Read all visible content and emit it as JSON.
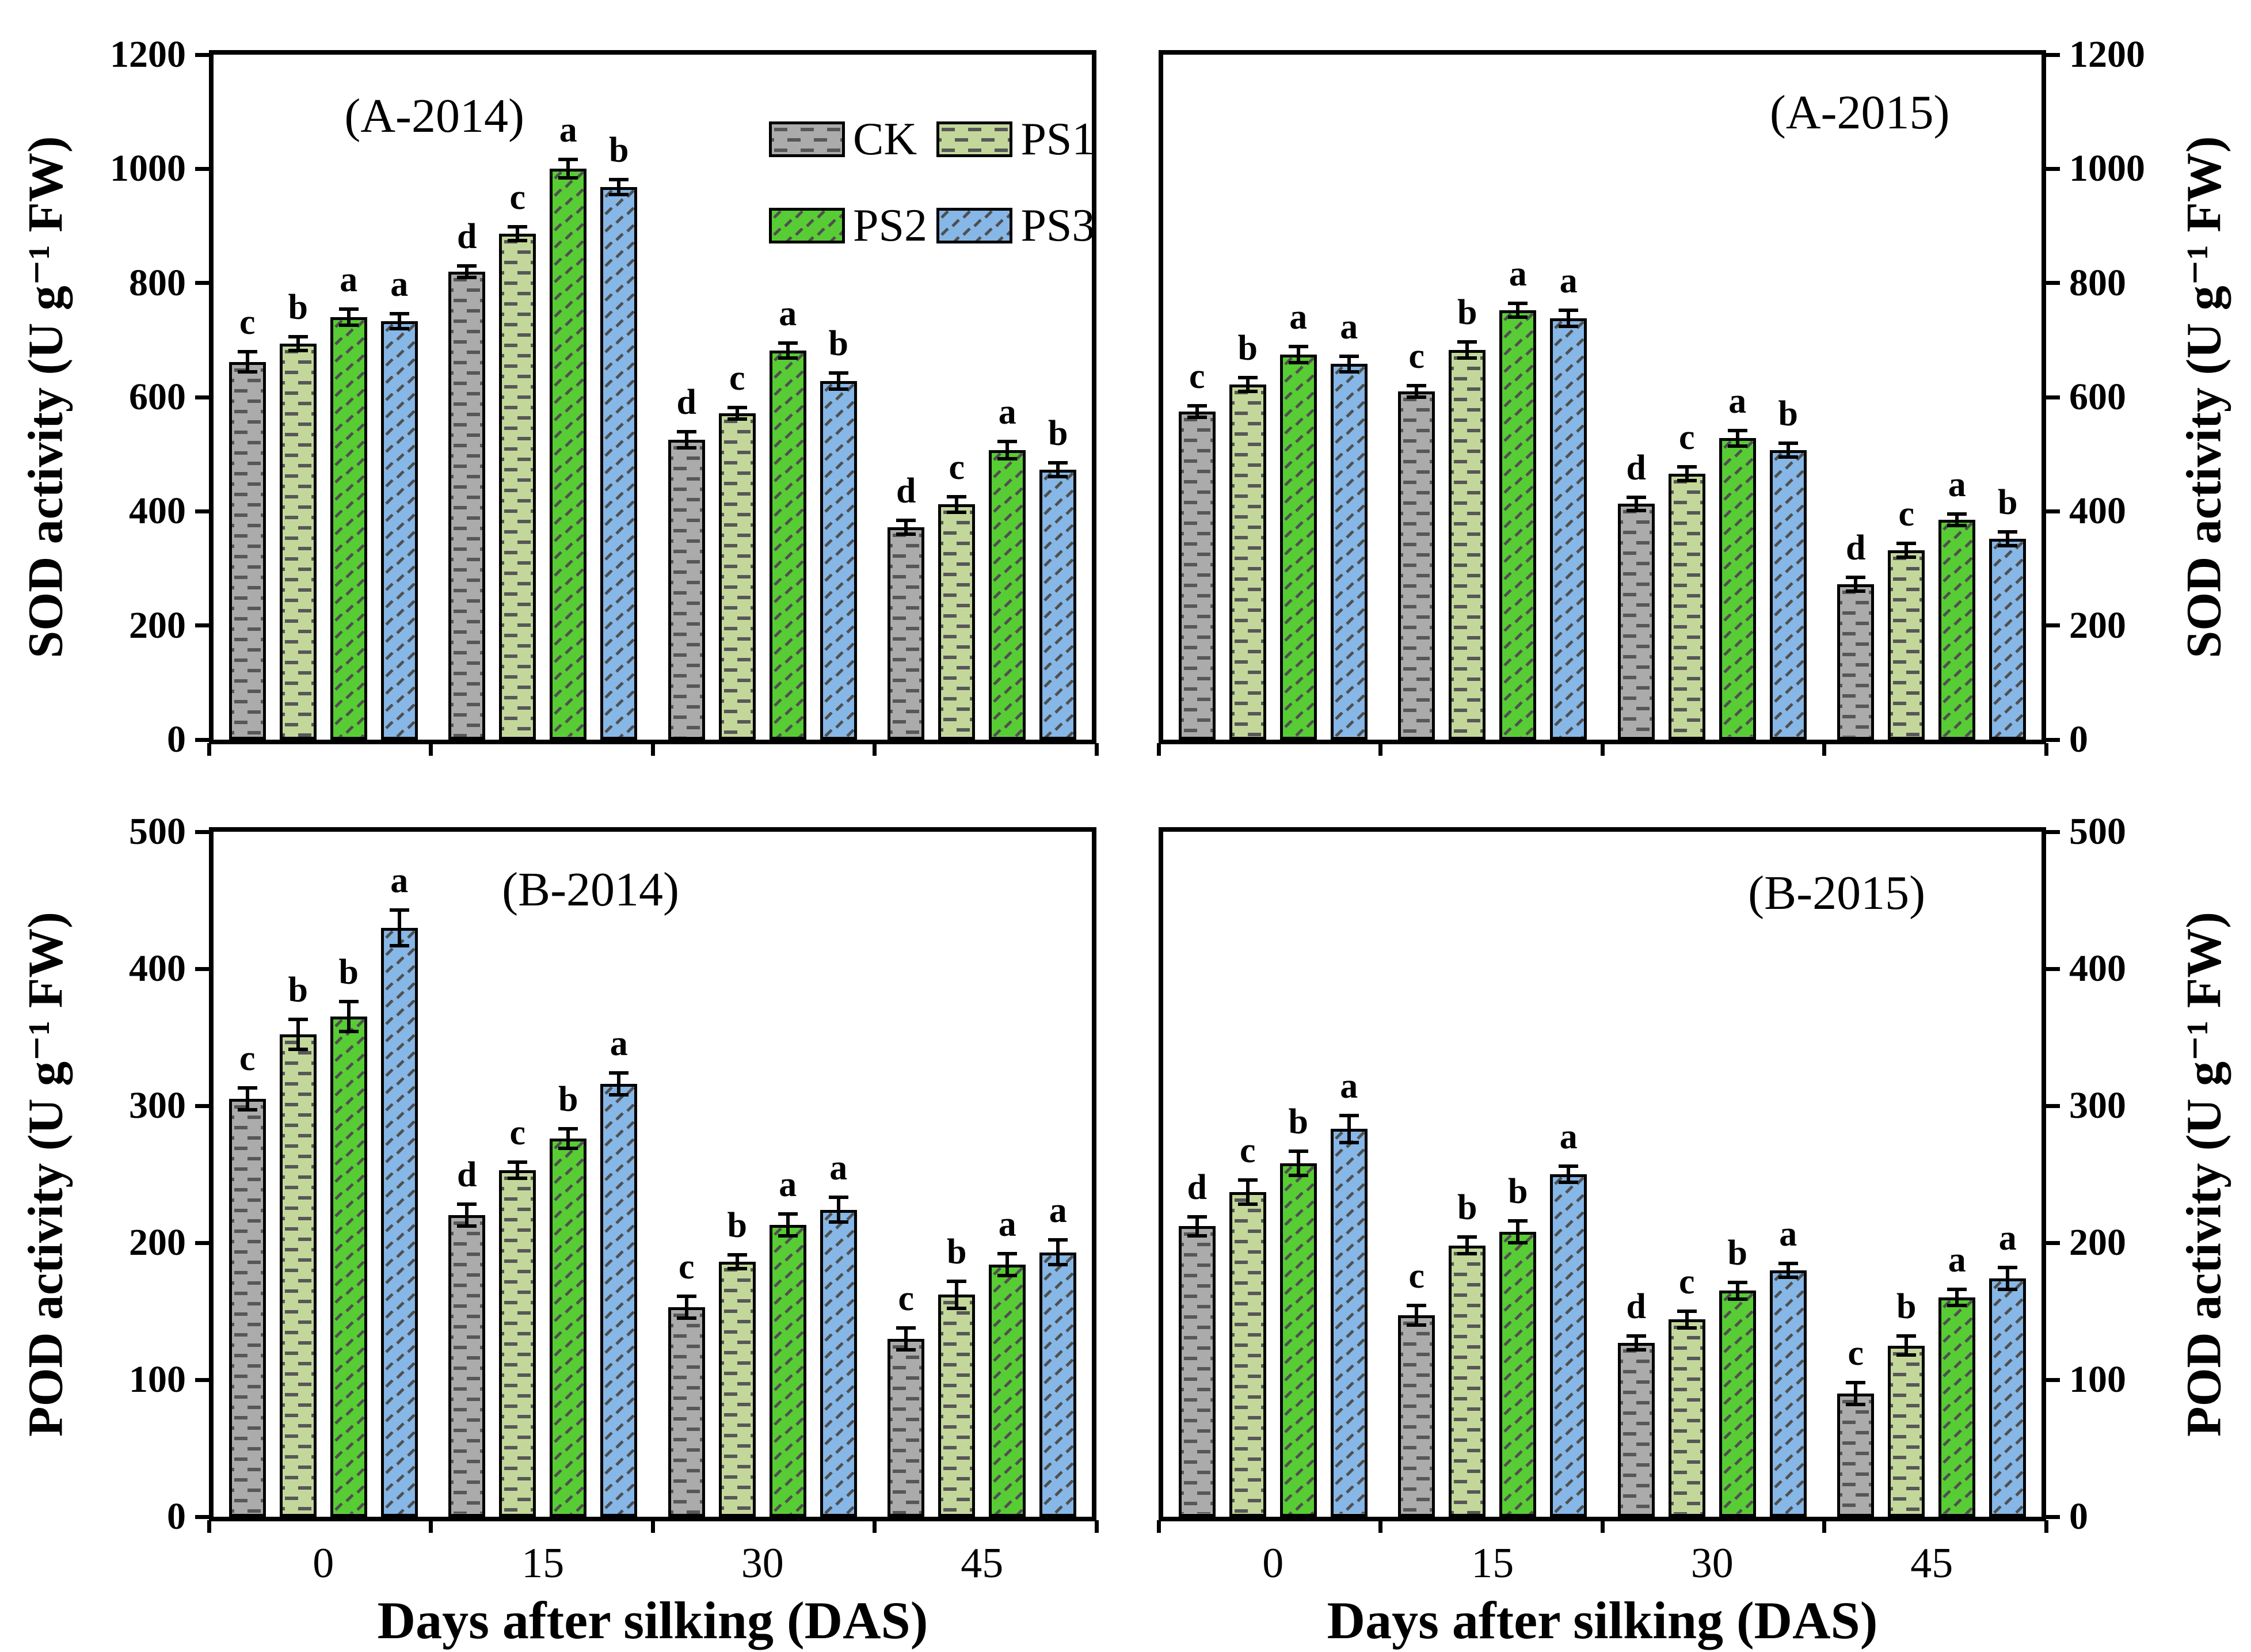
{
  "figure": {
    "x_axis_label": "Days after silking (DAS)",
    "x_tick_labels": [
      "0",
      "15",
      "30",
      "45"
    ],
    "legend": {
      "items": [
        {
          "key": "CK",
          "label": "CK"
        },
        {
          "key": "PS1",
          "label": "PS1"
        },
        {
          "key": "PS2",
          "label": "PS2"
        },
        {
          "key": "PS3",
          "label": "PS3"
        }
      ]
    },
    "colors": {
      "CK": {
        "fill": "#ababab",
        "hatch": "#575757",
        "hatch_type": "dash"
      },
      "PS1": {
        "fill": "#c4d79b",
        "hatch": "#575757",
        "hatch_type": "dash"
      },
      "PS2": {
        "fill": "#58cc34",
        "hatch": "#4f4f4f",
        "hatch_type": "diagonal"
      },
      "PS3": {
        "fill": "#86b7e6",
        "hatch": "#4f4f4f",
        "hatch_type": "diagonal"
      },
      "axis": "#000000"
    }
  },
  "chart_data": [
    {
      "type": "bar",
      "title": "(A-2014)",
      "ylabel": "SOD activity (U g⁻¹ FW)",
      "ylabel_side": "left",
      "ylim": [
        0,
        1200
      ],
      "yticks": [
        0,
        200,
        400,
        600,
        800,
        1000,
        1200
      ],
      "categories": [
        "0",
        "15",
        "30",
        "45"
      ],
      "series": [
        {
          "name": "CK",
          "values": [
            662,
            820,
            525,
            372
          ],
          "errors": [
            18,
            10,
            14,
            12
          ],
          "letters": [
            "c",
            "d",
            "d",
            "d"
          ]
        },
        {
          "name": "PS1",
          "values": [
            694,
            886,
            572,
            412
          ],
          "errors": [
            12,
            12,
            10,
            14
          ],
          "letters": [
            "b",
            "c",
            "c",
            "c"
          ]
        },
        {
          "name": "PS2",
          "values": [
            740,
            1000,
            682,
            507
          ],
          "errors": [
            14,
            16,
            13,
            15
          ],
          "letters": [
            "a",
            "a",
            "a",
            "a"
          ]
        },
        {
          "name": "PS3",
          "values": [
            733,
            968,
            628,
            473
          ],
          "errors": [
            13,
            13,
            14,
            12
          ],
          "letters": [
            "a",
            "b",
            "b",
            "b"
          ]
        }
      ]
    },
    {
      "type": "bar",
      "title": "(A-2015)",
      "ylabel": "SOD activity (U g⁻¹ FW)",
      "ylabel_side": "right",
      "ylim": [
        0,
        1200
      ],
      "yticks": [
        0,
        200,
        400,
        600,
        800,
        1000,
        1200
      ],
      "categories": [
        "0",
        "15",
        "30",
        "45"
      ],
      "series": [
        {
          "name": "CK",
          "values": [
            575,
            610,
            413,
            272
          ],
          "errors": [
            10,
            10,
            12,
            12
          ],
          "letters": [
            "c",
            "c",
            "d",
            "d"
          ]
        },
        {
          "name": "PS1",
          "values": [
            622,
            683,
            466,
            332
          ],
          "errors": [
            12,
            14,
            12,
            12
          ],
          "letters": [
            "b",
            "b",
            "c",
            "c"
          ]
        },
        {
          "name": "PS2",
          "values": [
            675,
            752,
            528,
            385
          ],
          "errors": [
            14,
            12,
            14,
            10
          ],
          "letters": [
            "a",
            "a",
            "a",
            "a"
          ]
        },
        {
          "name": "PS3",
          "values": [
            658,
            738,
            507,
            352
          ],
          "errors": [
            14,
            14,
            12,
            12
          ],
          "letters": [
            "a",
            "a",
            "b",
            "b"
          ]
        }
      ]
    },
    {
      "type": "bar",
      "title": "(B-2014)",
      "ylabel": "POD activity (U g⁻¹ FW)",
      "ylabel_side": "left",
      "ylim": [
        0,
        500
      ],
      "yticks": [
        0,
        100,
        200,
        300,
        400,
        500
      ],
      "categories": [
        "0",
        "15",
        "30",
        "45"
      ],
      "series": [
        {
          "name": "CK",
          "values": [
            305,
            220,
            153,
            130
          ],
          "errors": [
            8,
            8,
            8,
            8
          ],
          "letters": [
            "c",
            "d",
            "c",
            "c"
          ]
        },
        {
          "name": "PS1",
          "values": [
            352,
            253,
            186,
            162
          ],
          "errors": [
            11,
            6,
            5,
            10
          ],
          "letters": [
            "b",
            "c",
            "b",
            "b"
          ]
        },
        {
          "name": "PS2",
          "values": [
            365,
            276,
            213,
            184
          ],
          "errors": [
            11,
            7,
            8,
            8
          ],
          "letters": [
            "b",
            "b",
            "a",
            "a"
          ]
        },
        {
          "name": "PS3",
          "values": [
            430,
            316,
            224,
            193
          ],
          "errors": [
            13,
            8,
            9,
            9
          ],
          "letters": [
            "a",
            "a",
            "a",
            "a"
          ]
        }
      ]
    },
    {
      "type": "bar",
      "title": "(B-2015)",
      "ylabel": "POD activity (U g⁻¹ FW)",
      "ylabel_side": "right",
      "ylim": [
        0,
        500
      ],
      "yticks": [
        0,
        100,
        200,
        300,
        400,
        500
      ],
      "categories": [
        "0",
        "15",
        "30",
        "45"
      ],
      "series": [
        {
          "name": "CK",
          "values": [
            212,
            147,
            127,
            90
          ],
          "errors": [
            7,
            7,
            5,
            8
          ],
          "letters": [
            "d",
            "c",
            "d",
            "c"
          ]
        },
        {
          "name": "PS1",
          "values": [
            237,
            198,
            144,
            125
          ],
          "errors": [
            9,
            6,
            6,
            7
          ],
          "letters": [
            "c",
            "b",
            "c",
            "b"
          ]
        },
        {
          "name": "PS2",
          "values": [
            258,
            208,
            165,
            160
          ],
          "errors": [
            9,
            8,
            6,
            6
          ],
          "letters": [
            "b",
            "b",
            "b",
            "a"
          ]
        },
        {
          "name": "PS3",
          "values": [
            283,
            250,
            180,
            174
          ],
          "errors": [
            10,
            6,
            5,
            8
          ],
          "letters": [
            "a",
            "a",
            "a",
            "a"
          ]
        }
      ]
    }
  ]
}
